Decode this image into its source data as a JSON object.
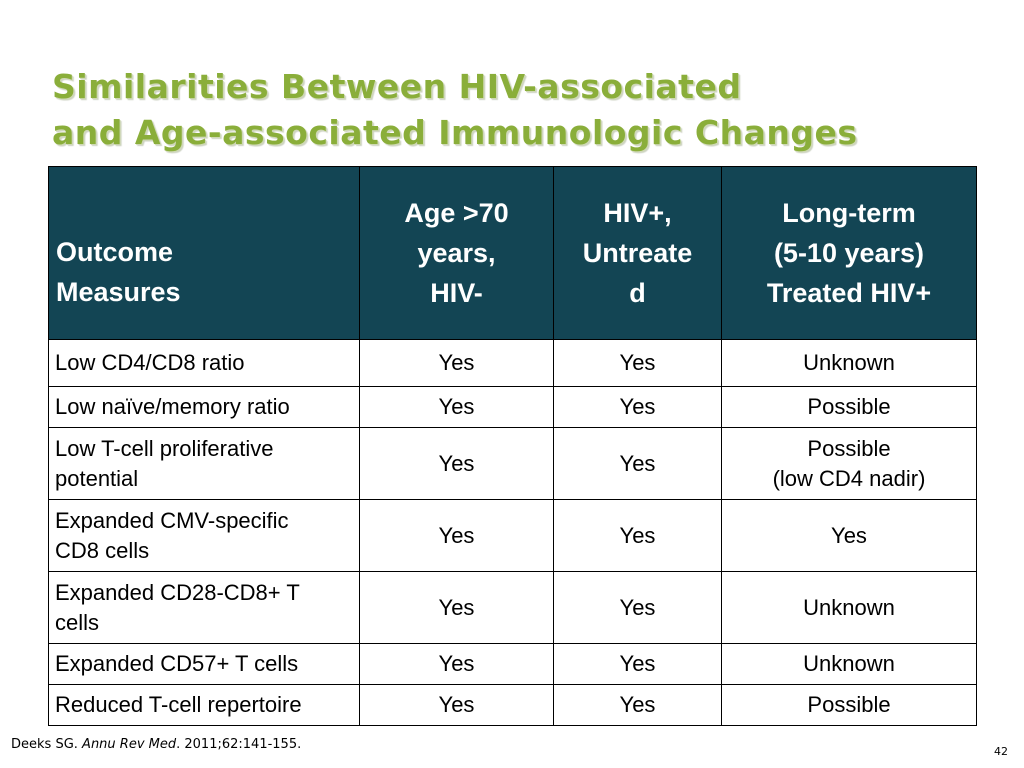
{
  "title": {
    "line1": "Similarities Between HIV-associated",
    "line2": "and Age-associated Immunologic Changes"
  },
  "table": {
    "headers": [
      [
        "Outcome",
        "Measures"
      ],
      [
        "Age >70",
        "years,",
        "HIV-"
      ],
      [
        "HIV+,",
        "Untreate",
        "d"
      ],
      [
        "Long-term",
        "(5-10 years)",
        "Treated HIV+"
      ]
    ],
    "rows": [
      [
        [
          "Low CD4/CD8 ratio"
        ],
        [
          "Yes"
        ],
        [
          "Yes"
        ],
        [
          "Unknown"
        ]
      ],
      [
        [
          "Low naïve/memory ratio"
        ],
        [
          "Yes"
        ],
        [
          "Yes"
        ],
        [
          "Possible"
        ]
      ],
      [
        [
          "Low T-cell proliferative",
          "potential"
        ],
        [
          "Yes"
        ],
        [
          "Yes"
        ],
        [
          "Possible",
          "(low CD4 nadir)"
        ]
      ],
      [
        [
          "Expanded CMV-specific",
          "CD8 cells"
        ],
        [
          "Yes"
        ],
        [
          "Yes"
        ],
        [
          "Yes"
        ]
      ],
      [
        [
          "Expanded CD28-CD8+ T",
          "cells"
        ],
        [
          "Yes"
        ],
        [
          "Yes"
        ],
        [
          "Unknown"
        ]
      ],
      [
        [
          "Expanded CD57+ T cells"
        ],
        [
          "Yes"
        ],
        [
          "Yes"
        ],
        [
          "Unknown"
        ]
      ],
      [
        [
          "Reduced T-cell repertoire"
        ],
        [
          "Yes"
        ],
        [
          "Yes"
        ],
        [
          "Possible"
        ]
      ]
    ]
  },
  "citation": {
    "author": "Deeks SG.",
    "journal": "Annu Rev Med",
    "details": ". 2011;62:141-155."
  },
  "page_number": "42",
  "colors": {
    "title": "#8aae3a",
    "header_bg": "#134554",
    "header_text": "#ffffff"
  }
}
